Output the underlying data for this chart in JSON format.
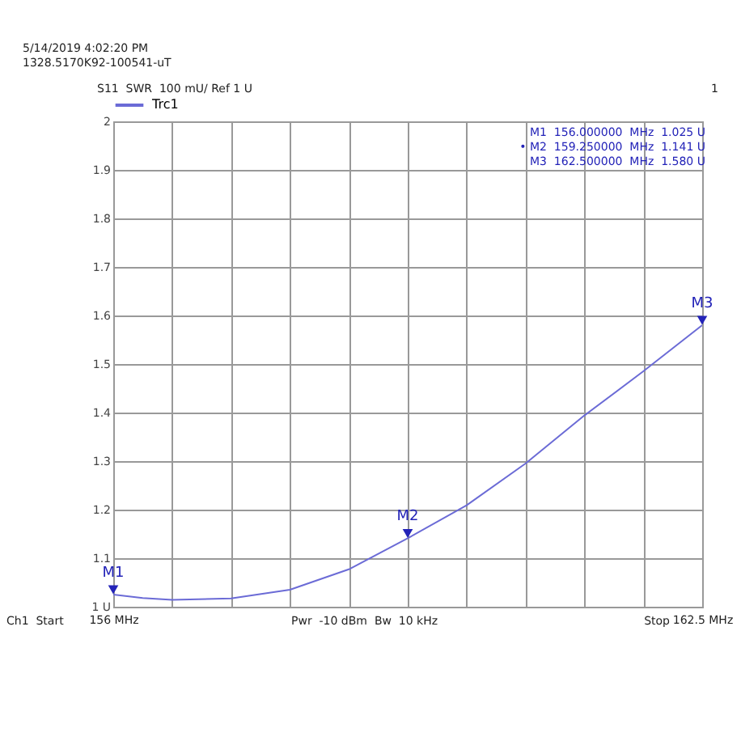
{
  "chart_data": {
    "type": "line",
    "x": [
      156,
      156.325,
      156.65,
      157.3,
      157.95,
      158.6,
      159.25,
      159.9,
      160.55,
      161.2,
      161.85,
      162.5
    ],
    "series": [
      {
        "name": "Trc1",
        "color": "#6b6bd6",
        "values": [
          1.025,
          1.018,
          1.014,
          1.017,
          1.035,
          1.077,
          1.141,
          1.209,
          1.295,
          1.394,
          1.485,
          1.58
        ]
      }
    ],
    "xlim": [
      156,
      162.5
    ],
    "xticks": [
      {
        "value": 156,
        "label": "156 MHz"
      },
      {
        "value": 156.65,
        "label": null
      },
      {
        "value": 157.3,
        "label": null
      },
      {
        "value": 157.95,
        "label": null
      },
      {
        "value": 158.6,
        "label": null
      },
      {
        "value": 159.25,
        "label": null
      },
      {
        "value": 159.9,
        "label": null
      },
      {
        "value": 160.55,
        "label": null
      },
      {
        "value": 161.2,
        "label": null
      },
      {
        "value": 161.85,
        "label": null
      },
      {
        "value": 162.5,
        "label": "162.5 MHz"
      }
    ],
    "ylim": [
      1,
      2
    ],
    "yticks": [
      {
        "value": 1,
        "label": "1 U"
      },
      1.1,
      1.2,
      1.3,
      1.4,
      1.5,
      1.6,
      1.7,
      1.8,
      1.9,
      2
    ],
    "grid": true,
    "legend": "top left",
    "marker": "none",
    "line_style": "solid",
    "annotations": [
      "5/14/2019 4:02:20 PM",
      "1328.5170K92-100541-uT",
      "S11  SWR  100 mU/ Ref 1 U",
      "1",
      "M1  156.000000  MHz  1.025 U",
      "• M2  159.250000  MHz  1.141 U",
      "M3  162.500000  MHz  1.580 U",
      "Ch1  Start",
      "Pwr  -10 dBm  Bw  10 kHz",
      "Stop",
      {
        "text": "M1",
        "x": 156,
        "y": 1.025
      },
      {
        "text": "M2",
        "x": 159.25,
        "y": 1.141
      },
      {
        "text": "M3",
        "x": 162.5,
        "y": 1.58
      }
    ]
  }
}
